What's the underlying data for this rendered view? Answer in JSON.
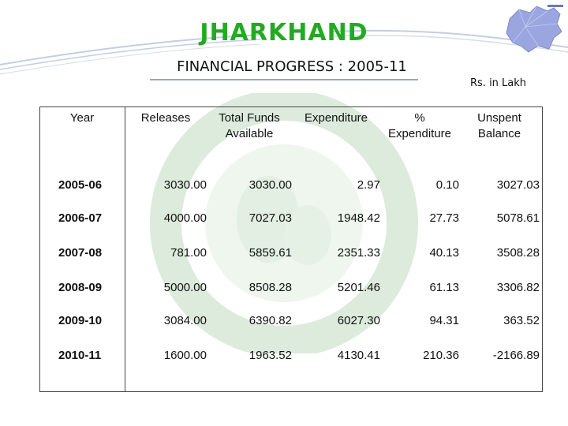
{
  "header": {
    "title": "JHARKHAND",
    "subtitle": "FINANCIAL PROGRESS : 2005-11",
    "units": "Rs. in Lakh"
  },
  "table": {
    "columns": [
      "Year",
      "Releases",
      "Total Funds Available",
      "Expenditure",
      "% Expenditure",
      "Unspent Balance"
    ],
    "rows": [
      {
        "year": "2005-06",
        "releases": "3030.00",
        "total_funds": "3030.00",
        "expenditure": "2.97",
        "pct_expenditure": "0.10",
        "unspent_balance": "3027.03"
      },
      {
        "year": "2006-07",
        "releases": "4000.00",
        "total_funds": "7027.03",
        "expenditure": "1948.42",
        "pct_expenditure": "27.73",
        "unspent_balance": "5078.61"
      },
      {
        "year": "2007-08",
        "releases": "781.00",
        "total_funds": "5859.61",
        "expenditure": "2351.33",
        "pct_expenditure": "40.13",
        "unspent_balance": "3508.28"
      },
      {
        "year": "2008-09",
        "releases": "5000.00",
        "total_funds": "8508.28",
        "expenditure": "5201.46",
        "pct_expenditure": "61.13",
        "unspent_balance": "3306.82"
      },
      {
        "year": "2009-10",
        "releases": "3084.00",
        "total_funds": "6390.82",
        "expenditure": "6027.30",
        "pct_expenditure": "94.31",
        "unspent_balance": "363.52"
      },
      {
        "year": "2010-11",
        "releases": "1600.00",
        "total_funds": "1963.52",
        "expenditure": "4130.41",
        "pct_expenditure": "210.36",
        "unspent_balance": "-2166.89"
      }
    ]
  },
  "colors": {
    "title": "#22aa22",
    "swoosh": "#b8c4dc",
    "watermark": "#dcebdc",
    "map_fill": "#9aa6e0"
  },
  "icons": {
    "map": "jharkhand-map-icon",
    "watermark": "horticulture-mission-emblem"
  }
}
